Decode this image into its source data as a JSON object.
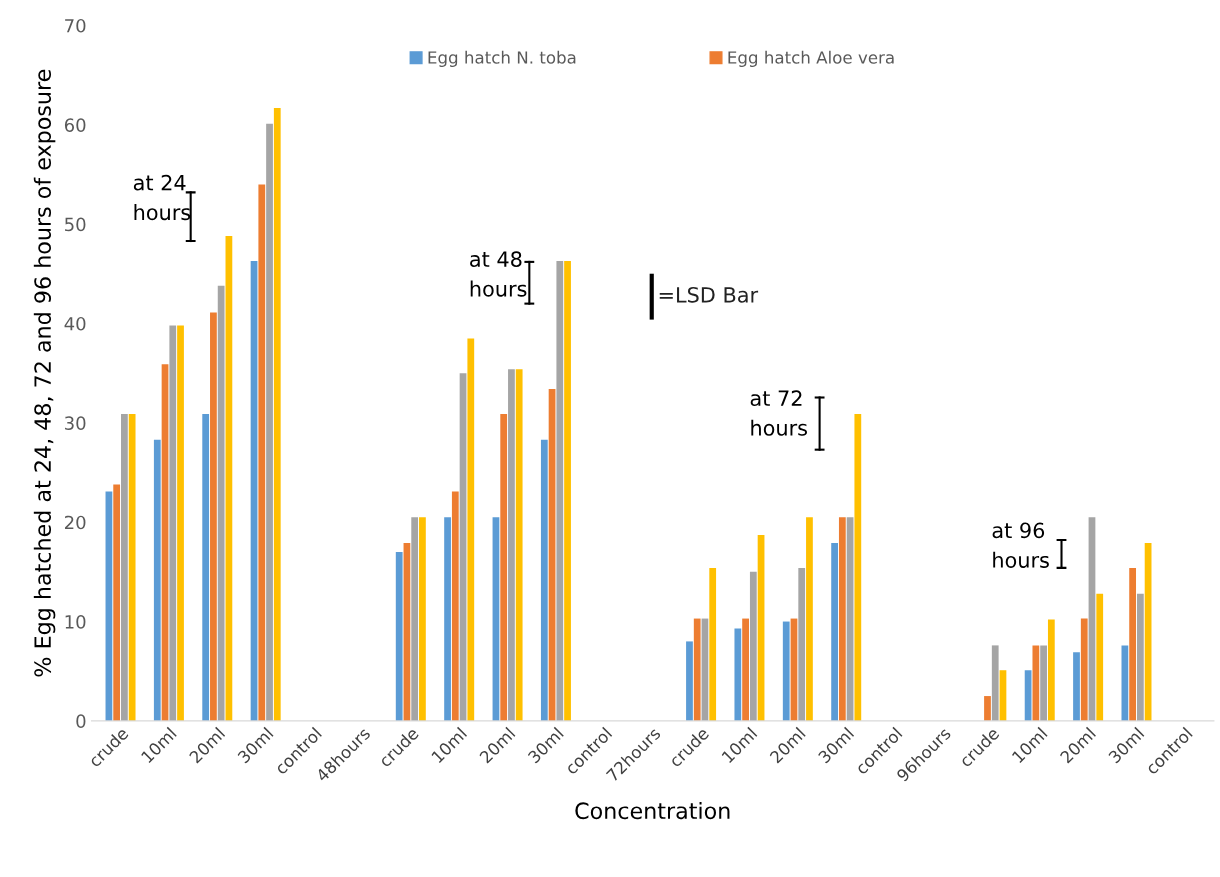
{
  "chart_data": {
    "type": "bar",
    "xlabel": "Concentration",
    "ylabel": "% Egg hatched at 24, 48, 72 and 96 hours of exposure",
    "categories": [
      "crude",
      "10ml",
      "20ml",
      "30ml",
      "control",
      "48hours",
      "crude",
      "10ml",
      "20ml",
      "30ml",
      "control",
      "72hours",
      "crude",
      "10ml",
      "20ml",
      "30ml",
      "control",
      "96hours",
      "crude",
      "10ml",
      "20ml",
      "30ml",
      "control"
    ],
    "series": [
      {
        "name": "Egg hatch N. toba",
        "color": "#5b9bd5",
        "values": [
          23.1,
          28.3,
          30.9,
          46.3,
          null,
          null,
          17.0,
          20.5,
          20.5,
          28.3,
          null,
          null,
          8.0,
          9.3,
          10.0,
          17.9,
          null,
          null,
          null,
          5.1,
          6.9,
          7.6,
          null
        ]
      },
      {
        "name": "Egg hatch Aloe vera",
        "color": "#ed7d31",
        "values": [
          23.8,
          35.9,
          41.1,
          54.0,
          null,
          null,
          17.9,
          23.1,
          30.9,
          33.4,
          null,
          null,
          10.3,
          10.3,
          10.3,
          20.5,
          null,
          null,
          2.5,
          7.6,
          10.3,
          15.4,
          null
        ]
      },
      {
        "color": "#a5a5a5",
        "values": [
          30.9,
          39.8,
          43.8,
          60.1,
          null,
          null,
          20.5,
          35.0,
          35.4,
          46.3,
          null,
          null,
          10.3,
          15.0,
          15.4,
          20.5,
          null,
          null,
          7.6,
          7.6,
          20.5,
          12.8,
          null
        ]
      },
      {
        "color": "#ffc000",
        "values": [
          30.9,
          39.8,
          48.8,
          61.7,
          null,
          null,
          20.5,
          38.5,
          35.4,
          46.3,
          null,
          null,
          15.4,
          18.7,
          20.5,
          30.9,
          null,
          null,
          5.1,
          10.2,
          12.8,
          17.9,
          null
        ]
      }
    ],
    "ylim": [
      0,
      70
    ],
    "yticks": [
      0,
      10,
      20,
      30,
      40,
      50,
      60,
      70
    ],
    "legend": "top",
    "grid": false,
    "annotations": [
      "at 24\nhours",
      "at 48\nhours",
      "at 72\nhours",
      "at 96\nhours",
      "=LSD Bar"
    ]
  }
}
